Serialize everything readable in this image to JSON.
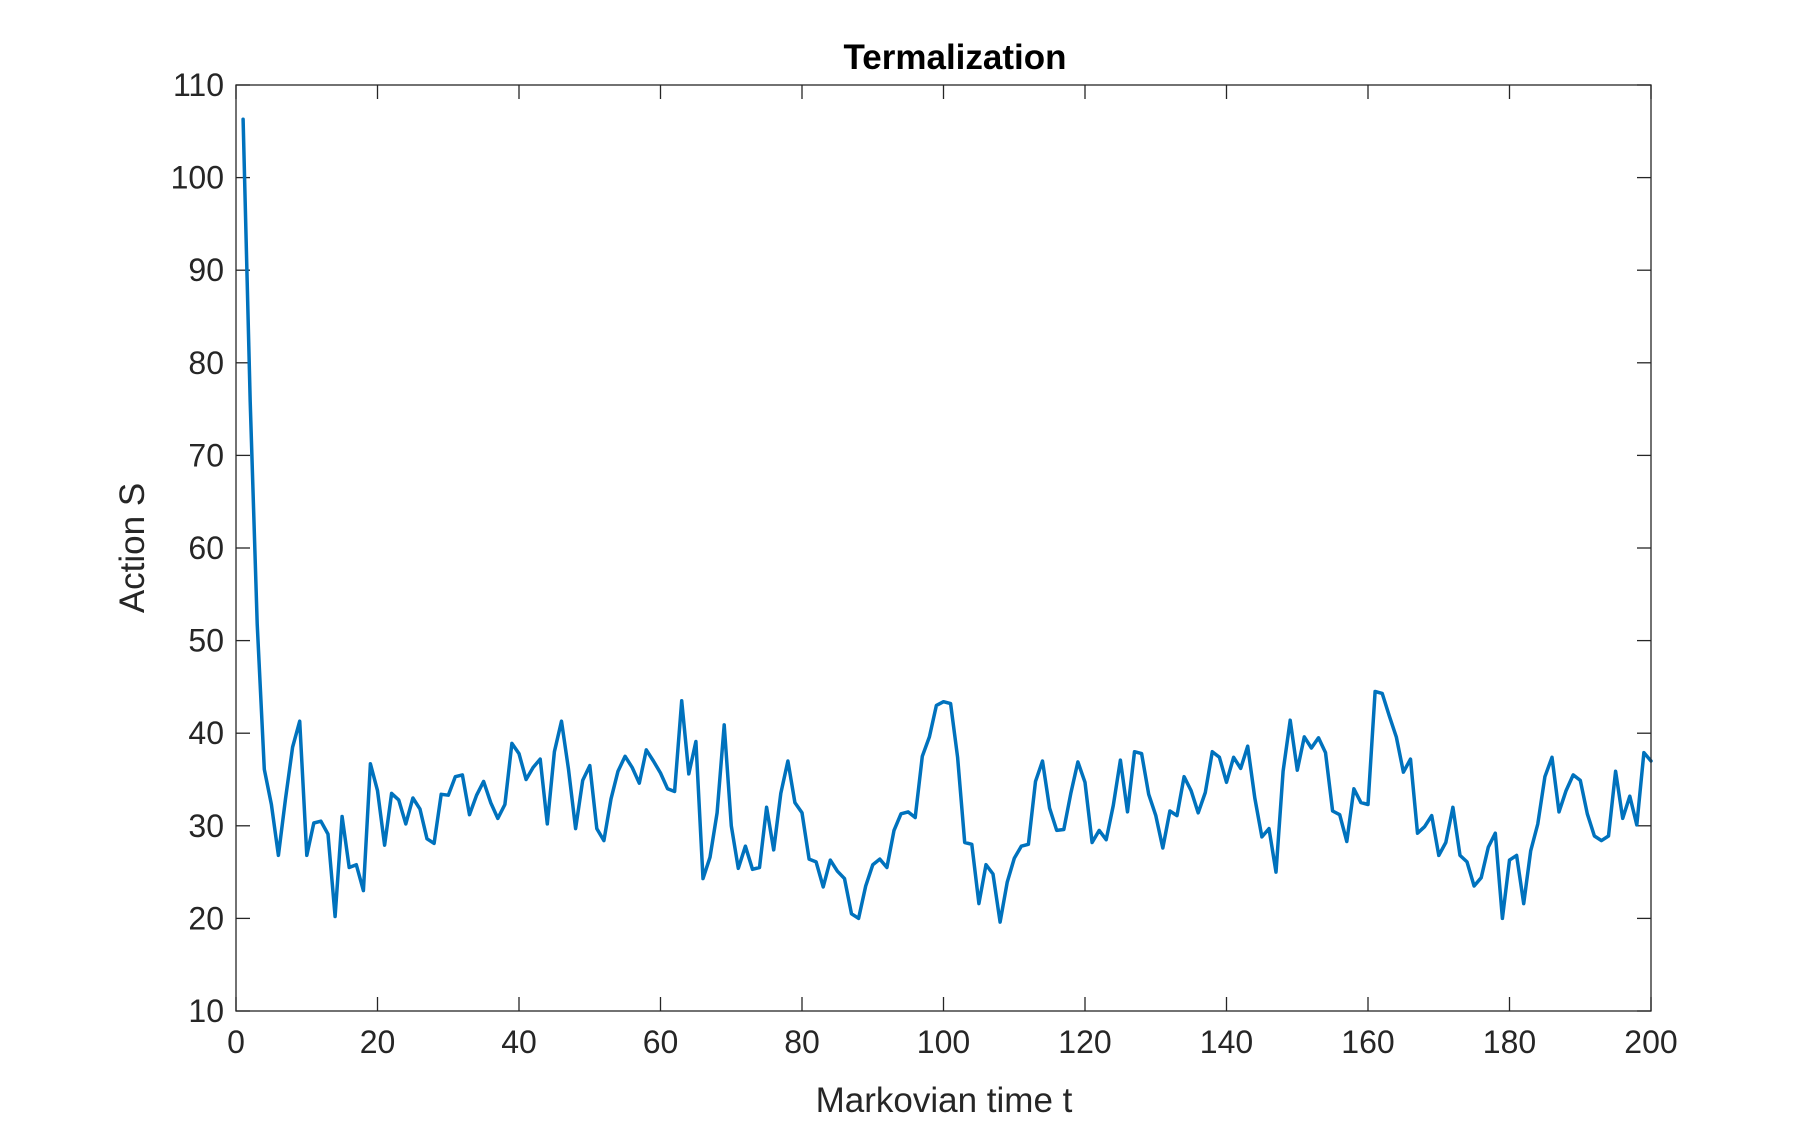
{
  "chart_data": {
    "type": "line",
    "title": "Termalization",
    "xlabel": "Markovian time t",
    "ylabel": "Action S",
    "xlim": [
      0,
      200
    ],
    "ylim": [
      10,
      110
    ],
    "xticks": [
      0,
      20,
      40,
      60,
      80,
      100,
      120,
      140,
      160,
      180,
      200
    ],
    "yticks": [
      10,
      20,
      30,
      40,
      50,
      60,
      70,
      80,
      90,
      100,
      110
    ],
    "grid": false,
    "legend": "none",
    "line_color": "#0072BD",
    "series": [
      {
        "x": [
          1,
          2,
          3,
          4,
          5,
          6,
          7,
          8,
          9,
          10,
          11,
          12,
          13,
          14,
          15,
          16,
          17,
          18,
          19,
          20,
          21,
          22,
          23,
          24,
          25,
          26,
          27,
          28,
          29,
          30,
          31,
          32,
          33,
          34,
          35,
          36,
          37,
          38,
          39,
          40,
          41,
          42,
          43,
          44,
          45,
          46,
          47,
          48,
          49,
          50,
          51,
          52,
          53,
          54,
          55,
          56,
          57,
          58,
          59,
          60,
          61,
          62,
          63,
          64,
          65,
          66,
          67,
          68,
          69,
          70,
          71,
          72,
          73,
          74,
          75,
          76,
          77,
          78,
          79,
          80,
          81,
          82,
          83,
          84,
          85,
          86,
          87,
          88,
          89,
          90,
          91,
          92,
          93,
          94,
          95,
          96,
          97,
          98,
          99,
          100,
          101,
          102,
          103,
          104,
          105,
          106,
          107,
          108,
          109,
          110,
          111,
          112,
          113,
          114,
          115,
          116,
          117,
          118,
          119,
          120,
          121,
          122,
          123,
          124,
          125,
          126,
          127,
          128,
          129,
          130,
          131,
          132,
          133,
          134,
          135,
          136,
          137,
          138,
          139,
          140,
          141,
          142,
          143,
          144,
          145,
          146,
          147,
          148,
          149,
          150,
          151,
          152,
          153,
          154,
          155,
          156,
          157,
          158,
          159,
          160,
          161,
          162,
          163,
          164,
          165,
          166,
          167,
          168,
          169,
          170,
          171,
          172,
          173,
          174,
          175,
          176,
          177,
          178,
          179,
          180,
          181,
          182,
          183,
          184,
          185,
          186,
          187,
          188,
          189,
          190,
          191,
          192,
          193,
          194,
          195,
          196,
          197,
          198,
          199,
          200
        ],
        "values": [
          106.3,
          75.8,
          51.8,
          36.1,
          32.3,
          26.8,
          32.9,
          38.5,
          41.3,
          26.8,
          30.3,
          30.5,
          29.1,
          20.2,
          31.0,
          25.5,
          25.8,
          23.0,
          36.7,
          33.8,
          27.9,
          33.5,
          32.8,
          30.2,
          33.0,
          31.8,
          28.6,
          28.1,
          33.4,
          33.3,
          35.3,
          35.5,
          31.2,
          33.3,
          34.8,
          32.5,
          30.8,
          32.3,
          38.9,
          37.8,
          35.0,
          36.3,
          37.2,
          30.2,
          38.0,
          41.3,
          36.1,
          29.7,
          34.9,
          36.5,
          29.7,
          28.4,
          32.9,
          35.9,
          37.5,
          36.3,
          34.6,
          38.2,
          37.0,
          35.7,
          34.0,
          33.7,
          43.5,
          35.6,
          39.1,
          24.3,
          26.6,
          31.4,
          40.9,
          30.0,
          25.4,
          27.8,
          25.3,
          25.5,
          32.0,
          27.4,
          33.5,
          37.0,
          32.5,
          31.4,
          26.4,
          26.1,
          23.4,
          26.3,
          25.1,
          24.3,
          20.5,
          20.0,
          23.5,
          25.8,
          26.4,
          25.5,
          29.5,
          31.3,
          31.5,
          30.9,
          37.5,
          39.6,
          43.0,
          43.4,
          43.2,
          37.4,
          28.2,
          28.0,
          21.6,
          25.8,
          24.8,
          19.6,
          23.9,
          26.5,
          27.8,
          28.0,
          34.8,
          37.0,
          31.9,
          29.5,
          29.6,
          33.5,
          36.9,
          34.7,
          28.2,
          29.5,
          28.5,
          32.2,
          37.1,
          31.5,
          38.0,
          37.8,
          33.4,
          31.1,
          27.6,
          31.6,
          31.1,
          35.3,
          33.8,
          31.4,
          33.6,
          38.0,
          37.4,
          34.7,
          37.4,
          36.2,
          38.6,
          33.0,
          28.8,
          29.7,
          25.0,
          35.9,
          41.4,
          36.0,
          39.6,
          38.4,
          39.5,
          37.9,
          31.6,
          31.2,
          28.3,
          34.0,
          32.5,
          32.3,
          44.5,
          44.3,
          41.9,
          39.6,
          35.8,
          37.2,
          29.2,
          29.9,
          31.1,
          26.8,
          28.2,
          32.0,
          26.8,
          26.1,
          23.5,
          24.4,
          27.7,
          29.2,
          20.0,
          26.3,
          26.8,
          21.6,
          27.3,
          30.2,
          35.3,
          37.4,
          31.5,
          33.8,
          35.5,
          34.9,
          31.3,
          28.9,
          28.4,
          28.9,
          35.9,
          30.8,
          33.2,
          30.1,
          37.9,
          37.0
        ]
      }
    ]
  }
}
